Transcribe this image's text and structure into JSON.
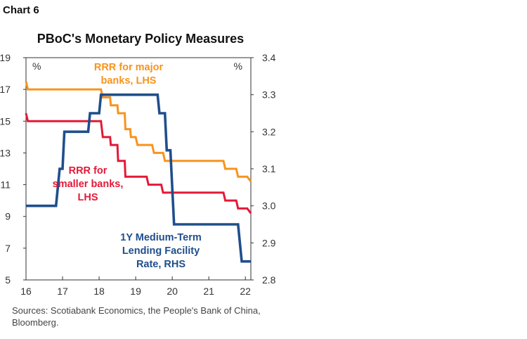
{
  "header": {
    "chart_label": "Chart 6",
    "title": "PBoC's Monetary Policy Measures"
  },
  "chart_data": {
    "type": "line",
    "title": "PBoC's Monetary Policy Measures",
    "x_ticks": [
      "16",
      "17",
      "18",
      "19",
      "20",
      "21",
      "22"
    ],
    "x_range": [
      2016.0,
      2022.15
    ],
    "y_left": {
      "unit": "%",
      "min": 5,
      "max": 19,
      "ticks": [
        5,
        7,
        9,
        11,
        13,
        15,
        17,
        19
      ]
    },
    "y_right": {
      "unit": "%",
      "min": 2.8,
      "max": 3.4,
      "ticks": [
        "2.8",
        "2.9",
        "3.0",
        "3.1",
        "3.2",
        "3.3",
        "3.4"
      ]
    },
    "grid": false,
    "series": [
      {
        "name": "RRR for major banks, LHS",
        "label_lines": [
          "RRR for major",
          "banks, LHS"
        ],
        "axis": "left",
        "color": "#F7941D",
        "points": [
          [
            2016.0,
            17.5
          ],
          [
            2016.05,
            17.0
          ],
          [
            2018.05,
            17.0
          ],
          [
            2018.1,
            16.5
          ],
          [
            2018.3,
            16.5
          ],
          [
            2018.32,
            16.0
          ],
          [
            2018.5,
            16.0
          ],
          [
            2018.52,
            15.5
          ],
          [
            2018.7,
            15.5
          ],
          [
            2018.72,
            14.5
          ],
          [
            2018.85,
            14.5
          ],
          [
            2018.87,
            14.0
          ],
          [
            2019.0,
            14.0
          ],
          [
            2019.05,
            13.5
          ],
          [
            2019.45,
            13.5
          ],
          [
            2019.5,
            13.0
          ],
          [
            2019.75,
            13.0
          ],
          [
            2019.8,
            12.5
          ],
          [
            2020.3,
            12.5
          ],
          [
            2020.35,
            12.5
          ],
          [
            2021.4,
            12.5
          ],
          [
            2021.45,
            12.0
          ],
          [
            2021.75,
            12.0
          ],
          [
            2021.8,
            11.5
          ],
          [
            2022.05,
            11.5
          ],
          [
            2022.15,
            11.2
          ]
        ]
      },
      {
        "name": "RRR for smaller banks, LHS",
        "label_lines": [
          "RRR for",
          "smaller banks,",
          "LHS"
        ],
        "axis": "left",
        "color": "#E31937",
        "points": [
          [
            2016.0,
            15.5
          ],
          [
            2016.05,
            15.0
          ],
          [
            2018.05,
            15.0
          ],
          [
            2018.1,
            14.0
          ],
          [
            2018.3,
            14.0
          ],
          [
            2018.32,
            13.5
          ],
          [
            2018.5,
            13.5
          ],
          [
            2018.52,
            12.5
          ],
          [
            2018.7,
            12.5
          ],
          [
            2018.72,
            11.5
          ],
          [
            2019.3,
            11.5
          ],
          [
            2019.35,
            11.0
          ],
          [
            2019.7,
            11.0
          ],
          [
            2019.75,
            10.5
          ],
          [
            2021.4,
            10.5
          ],
          [
            2021.45,
            10.0
          ],
          [
            2021.75,
            10.0
          ],
          [
            2021.8,
            9.5
          ],
          [
            2022.05,
            9.5
          ],
          [
            2022.15,
            9.2
          ]
        ]
      },
      {
        "name": "1Y Medium-Term Lending Facility Rate, RHS",
        "label_lines": [
          "1Y Medium-Term",
          "Lending Facility",
          "Rate, RHS"
        ],
        "axis": "right",
        "color": "#1F4E8C",
        "points": [
          [
            2016.0,
            3.0
          ],
          [
            2016.82,
            3.0
          ],
          [
            2016.92,
            3.1
          ],
          [
            2017.0,
            3.1
          ],
          [
            2017.05,
            3.2
          ],
          [
            2017.7,
            3.2
          ],
          [
            2017.75,
            3.25
          ],
          [
            2018.0,
            3.25
          ],
          [
            2018.05,
            3.3
          ],
          [
            2019.6,
            3.3
          ],
          [
            2019.65,
            3.25
          ],
          [
            2019.8,
            3.25
          ],
          [
            2019.85,
            3.15
          ],
          [
            2019.95,
            3.15
          ],
          [
            2020.05,
            2.95
          ],
          [
            2021.8,
            2.95
          ],
          [
            2021.9,
            2.85
          ],
          [
            2022.15,
            2.85
          ]
        ]
      }
    ]
  },
  "footer": {
    "source": "Sources: Scotiabank Economics, the People's Bank of China, Bloomberg."
  }
}
